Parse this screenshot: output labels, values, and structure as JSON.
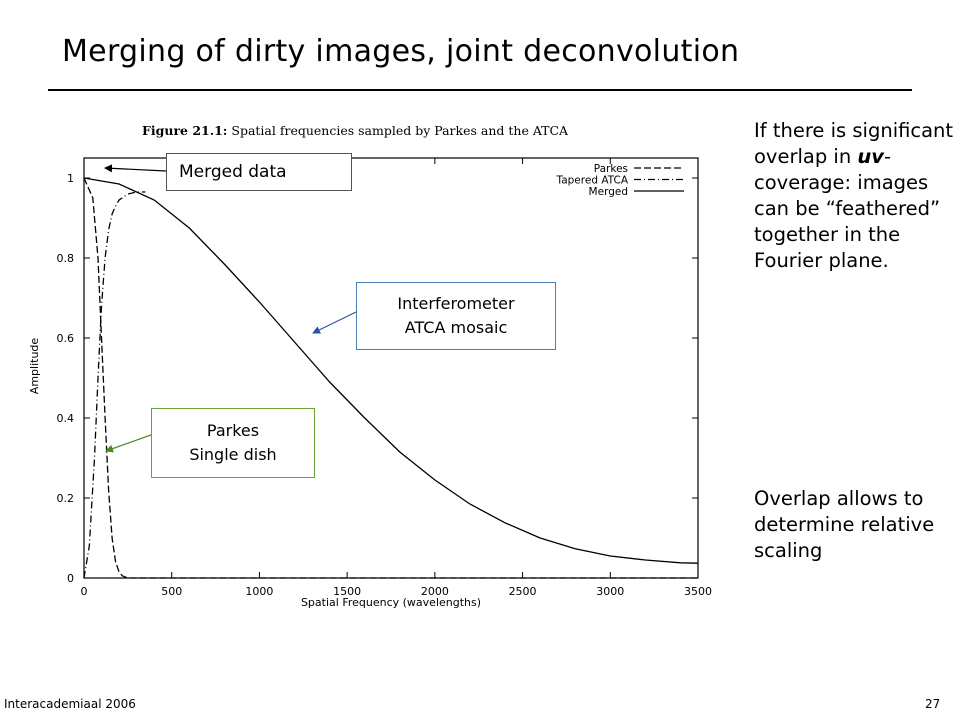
{
  "slide": {
    "title": "Merging of dirty images, joint deconvolution",
    "side_text_1": "If there is significant overlap in ",
    "side_text_1_em": "uv",
    "side_text_1_rest": "-coverage: images can be “feathered” together in the Fourier plane.",
    "side_text_2": "Overlap allows to determine relative scaling",
    "footer_left": "Interacademiaal 2006",
    "footer_right": "27"
  },
  "callouts": {
    "merged": "Merged data",
    "interferometer_line1": "Interferometer",
    "interferometer_line2": "ATCA mosaic",
    "parkes_line1": "Parkes",
    "parkes_line2": "Single dish"
  },
  "colors": {
    "interferometer_arrow": "#2855a8",
    "parkes_arrow": "#4a8a20",
    "merged_arrow": "#000000"
  },
  "chart_data": {
    "type": "line",
    "figure_caption_bold": "Figure 21.1:",
    "figure_caption_rest": " Spatial frequencies sampled by Parkes and the ATCA",
    "xlabel": "Spatial Frequency (wavelengths)",
    "ylabel": "Amplitude",
    "xlim": [
      0,
      3500
    ],
    "ylim": [
      0,
      1.05
    ],
    "x_ticks": [
      0,
      500,
      1000,
      1500,
      2000,
      2500,
      3000,
      3500
    ],
    "y_ticks": [
      0,
      0.2,
      0.4,
      0.6,
      0.8,
      1
    ],
    "y_tick_labels": [
      "0",
      "0.2",
      "0.4",
      "0.6",
      "0.8",
      "1"
    ],
    "legend_position": "top-right",
    "series": [
      {
        "name": "Parkes",
        "style": "dashed",
        "x": [
          0,
          50,
          80,
          100,
          120,
          140,
          160,
          180,
          200,
          220,
          250,
          300,
          350,
          400,
          500,
          1000,
          2000,
          3500
        ],
        "y": [
          1.0,
          0.95,
          0.8,
          0.6,
          0.4,
          0.22,
          0.1,
          0.04,
          0.015,
          0.005,
          0.0,
          0.0,
          0.0,
          0.0,
          0.0,
          0.0,
          0.0,
          0.0
        ]
      },
      {
        "name": "Tapered ATCA",
        "style": "dashdot",
        "x": [
          0,
          30,
          60,
          80,
          100,
          120,
          140,
          160,
          180,
          200,
          250,
          300,
          350
        ],
        "y": [
          0.0,
          0.08,
          0.3,
          0.5,
          0.68,
          0.8,
          0.87,
          0.91,
          0.93,
          0.945,
          0.96,
          0.965,
          0.965
        ]
      },
      {
        "name": "Merged",
        "style": "solid",
        "x": [
          0,
          200,
          400,
          600,
          800,
          1000,
          1200,
          1400,
          1600,
          1800,
          2000,
          2200,
          2400,
          2600,
          2800,
          3000,
          3200,
          3400,
          3500
        ],
        "y": [
          1.0,
          0.985,
          0.945,
          0.875,
          0.785,
          0.69,
          0.59,
          0.49,
          0.4,
          0.315,
          0.245,
          0.185,
          0.138,
          0.1,
          0.073,
          0.055,
          0.045,
          0.038,
          0.037
        ]
      }
    ]
  }
}
